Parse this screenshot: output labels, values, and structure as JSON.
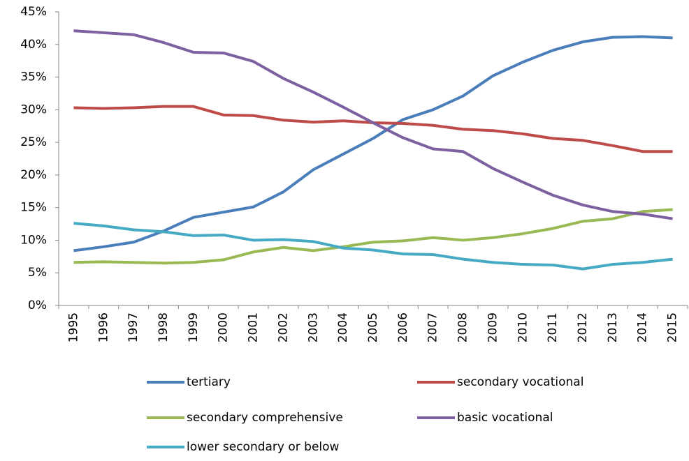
{
  "chart_data": {
    "type": "line",
    "categories": [
      "1995",
      "1996",
      "1997",
      "1998",
      "1999",
      "2000",
      "2001",
      "2002",
      "2003",
      "2004",
      "2005",
      "2006",
      "2007",
      "2008",
      "2009",
      "2010",
      "2011",
      "2012",
      "2013",
      "2014",
      "2015"
    ],
    "series": [
      {
        "name": "tertiary",
        "color": "#4a7ebb",
        "values": [
          8.4,
          9.0,
          9.7,
          11.4,
          13.5,
          14.3,
          15.1,
          17.4,
          20.8,
          23.2,
          25.6,
          28.5,
          30.0,
          32.1,
          35.2,
          37.3,
          39.1,
          40.4,
          41.1,
          41.2,
          41.0
        ]
      },
      {
        "name": "secondary vocational",
        "color": "#be4b48",
        "values": [
          30.3,
          30.2,
          30.3,
          30.5,
          30.5,
          29.2,
          29.1,
          28.4,
          28.1,
          28.3,
          28.0,
          27.9,
          27.6,
          27.0,
          26.8,
          26.3,
          25.6,
          25.3,
          24.5,
          23.6,
          23.6
        ]
      },
      {
        "name": "secondary comprehensive",
        "color": "#98b954",
        "values": [
          6.6,
          6.7,
          6.6,
          6.5,
          6.6,
          7.0,
          8.2,
          8.9,
          8.4,
          9.0,
          9.7,
          9.9,
          10.4,
          10.0,
          10.4,
          11.0,
          11.8,
          12.9,
          13.3,
          14.4,
          14.7
        ]
      },
      {
        "name": "basic vocational",
        "color": "#7d60a0",
        "values": [
          42.1,
          41.8,
          41.5,
          40.3,
          38.8,
          38.7,
          37.4,
          34.8,
          32.7,
          30.4,
          28.0,
          25.7,
          24.0,
          23.6,
          21.0,
          18.9,
          16.9,
          15.4,
          14.4,
          14.0,
          13.3
        ]
      },
      {
        "name": "lower secondary or below",
        "color": "#46aac5",
        "values": [
          12.6,
          12.2,
          11.6,
          11.3,
          10.7,
          10.8,
          10.0,
          10.1,
          9.8,
          8.8,
          8.5,
          7.9,
          7.8,
          7.1,
          6.6,
          6.3,
          6.2,
          5.6,
          6.3,
          6.6,
          7.1
        ]
      }
    ],
    "ylim": [
      0,
      45
    ],
    "yticks": [
      {
        "value": 0,
        "label": "0%"
      },
      {
        "value": 5,
        "label": "5%"
      },
      {
        "value": 10,
        "label": "10%"
      },
      {
        "value": 15,
        "label": "15%"
      },
      {
        "value": 20,
        "label": "20%"
      },
      {
        "value": 25,
        "label": "25%"
      },
      {
        "value": 30,
        "label": "30%"
      },
      {
        "value": 35,
        "label": "35%"
      },
      {
        "value": 40,
        "label": "40%"
      },
      {
        "value": 45,
        "label": "45%"
      }
    ],
    "grid": false
  }
}
